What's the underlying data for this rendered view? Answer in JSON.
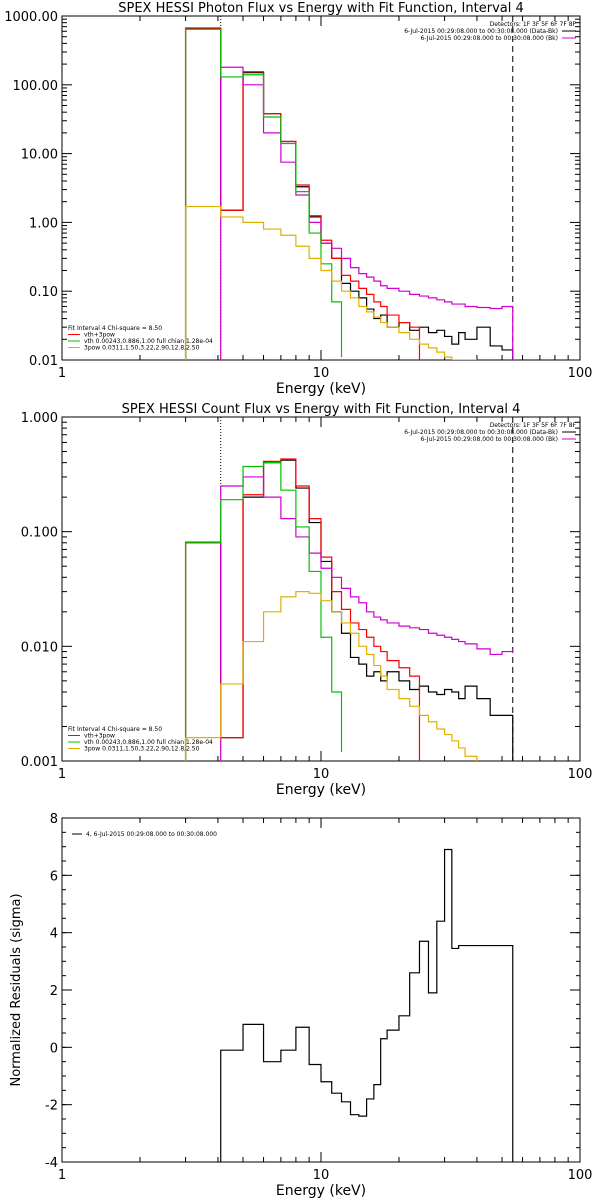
{
  "chart_data": [
    {
      "type": "line",
      "title": "SPEX HESSI Photon Flux vs Energy with Fit Function, Interval 4",
      "xlabel": "Energy (keV)",
      "ylabel": "",
      "x_scale": "log",
      "y_scale": "log",
      "xlim": [
        1,
        100
      ],
      "ylim": [
        0.01,
        1000
      ],
      "x_ticks": [
        {
          "v": 1,
          "label": "1"
        },
        {
          "v": 10,
          "label": "10"
        },
        {
          "v": 100,
          "label": "100"
        }
      ],
      "y_ticks": [
        {
          "v": 0.01,
          "label": "0.01"
        },
        {
          "v": 0.1,
          "label": "0.10"
        },
        {
          "v": 1,
          "label": "1.00"
        },
        {
          "v": 10,
          "label": "10.00"
        },
        {
          "v": 100,
          "label": "100.00"
        },
        {
          "v": 1000,
          "label": "1000.00"
        }
      ],
      "vlines": [
        {
          "x": 4.1,
          "style": "dotted"
        },
        {
          "x": 55,
          "style": "dashed"
        }
      ],
      "legend_top_right": [
        {
          "text": "Detectors: 1F 3F 5F 6F 7F 8F",
          "color": "#000000"
        },
        {
          "text": "6-Jul-2015 00:29:08.000 to 00:30:08.000 (Data-Bk)",
          "color": "#000000"
        },
        {
          "text": "6-Jul-2015 00:29:08.000 to 00:30:08.000 (Bk)",
          "color": "#d000d0"
        }
      ],
      "legend_bottom_left": [
        {
          "text": "Fit Interval 4   Chi-square = 8.50",
          "color": "#000000"
        },
        {
          "text": "vth+3pow",
          "color": "#ff0000"
        },
        {
          "text": "vth 0.00243,0.886,1.00  full chian 1.28e-04",
          "color": "#00c000"
        },
        {
          "text": "3pow 0.0311,1.50,3.22,2.90,12.8,2.50",
          "color": "#e0b000"
        }
      ],
      "series": [
        {
          "color": "#000000",
          "edges": [
            3,
            4.1,
            5,
            6,
            7,
            8,
            9,
            10,
            11,
            12,
            13,
            14,
            15,
            16,
            17,
            18,
            20,
            22,
            24,
            26,
            28,
            30,
            32,
            34,
            36,
            40,
            45,
            50,
            55
          ],
          "values": [
            650,
            1.5,
            150,
            38,
            15,
            3.3,
            1.2,
            0.5,
            0.3,
            0.13,
            0.1,
            0.08,
            0.055,
            0.04,
            0.045,
            0.03,
            0.035,
            0.027,
            0.03,
            0.025,
            0.027,
            0.022,
            0.017,
            0.025,
            0.02,
            0.03,
            0.016,
            0.014
          ]
        },
        {
          "color": "#ff0000",
          "edges": [
            3,
            4.1,
            5,
            6,
            7,
            8,
            9,
            10,
            11,
            12,
            13,
            14,
            15,
            16,
            17,
            18,
            20,
            22,
            24
          ],
          "values": [
            670,
            1.5,
            155,
            38,
            15,
            3.5,
            1.25,
            0.55,
            0.3,
            0.17,
            0.14,
            0.11,
            0.09,
            0.07,
            0.06,
            0.045,
            0.035,
            0.03
          ]
        },
        {
          "color": "#d000d0",
          "edges": [
            4.1,
            5,
            6,
            7,
            8,
            9,
            10,
            11,
            12,
            13,
            14,
            15,
            16,
            17,
            18,
            20,
            22,
            24,
            26,
            28,
            30,
            32,
            34,
            36,
            40,
            45,
            50,
            55
          ],
          "values": [
            180,
            100,
            20,
            7.5,
            2.5,
            1.0,
            0.5,
            0.42,
            0.3,
            0.22,
            0.18,
            0.16,
            0.14,
            0.12,
            0.11,
            0.1,
            0.09,
            0.085,
            0.08,
            0.075,
            0.07,
            0.065,
            0.065,
            0.06,
            0.058,
            0.056,
            0.06
          ]
        },
        {
          "color": "#00c000",
          "edges": [
            3,
            4.1,
            5,
            6,
            7,
            8,
            9,
            10,
            11,
            12
          ],
          "values": [
            640,
            130,
            140,
            34,
            14,
            2.8,
            0.7,
            0.25,
            0.07,
            0.011
          ]
        },
        {
          "color": "#e0b000",
          "edges": [
            3,
            4.1,
            5,
            6,
            7,
            8,
            9,
            10,
            11,
            12,
            13,
            14,
            15,
            16,
            17,
            18,
            20,
            22,
            24,
            26,
            28,
            30,
            32,
            34,
            36,
            40
          ],
          "values": [
            1.7,
            1.2,
            1.0,
            0.8,
            0.65,
            0.45,
            0.3,
            0.2,
            0.14,
            0.1,
            0.08,
            0.06,
            0.05,
            0.042,
            0.035,
            0.03,
            0.025,
            0.02,
            0.017,
            0.015,
            0.013,
            0.011,
            0.01,
            0.009,
            0.008
          ]
        }
      ]
    },
    {
      "type": "line",
      "title": "SPEX HESSI Count Flux vs Energy with Fit Function, Interval 4",
      "xlabel": "Energy (keV)",
      "ylabel": "",
      "x_scale": "log",
      "y_scale": "log",
      "xlim": [
        1,
        100
      ],
      "ylim": [
        0.001,
        1
      ],
      "x_ticks": [
        {
          "v": 1,
          "label": "1"
        },
        {
          "v": 10,
          "label": "10"
        },
        {
          "v": 100,
          "label": "100"
        }
      ],
      "y_ticks": [
        {
          "v": 0.001,
          "label": "0.001"
        },
        {
          "v": 0.01,
          "label": "0.010"
        },
        {
          "v": 0.1,
          "label": "0.100"
        },
        {
          "v": 1,
          "label": "1.000"
        }
      ],
      "vlines": [
        {
          "x": 4.1,
          "style": "dotted"
        },
        {
          "x": 55,
          "style": "dashed"
        }
      ],
      "legend_top_right": [
        {
          "text": "Detectors: 1F 3F 5F 6F 7F 8F",
          "color": "#000000"
        },
        {
          "text": "6-Jul-2015 00:29:08.000 to 00:30:08.000 (Data-Bk)",
          "color": "#000000"
        },
        {
          "text": "6-Jul-2015 00:29:08.000 to 00:30:08.000 (Bk)",
          "color": "#d000d0"
        }
      ],
      "legend_bottom_left": [
        {
          "text": "Fit Interval 4   Chi-square = 8.50",
          "color": "#000000"
        },
        {
          "text": "vth+3pow",
          "color": "#ff0000"
        },
        {
          "text": "vth 0.00243,0.886,1.00  full chian 1.28e-04",
          "color": "#00c000"
        },
        {
          "text": "3pow 0.0311,1.50,3.22,2.90,12.8,2.50",
          "color": "#e0b000"
        }
      ],
      "series": [
        {
          "color": "#000000",
          "edges": [
            3,
            4.1,
            5,
            6,
            7,
            8,
            9,
            10,
            11,
            12,
            13,
            14,
            15,
            16,
            17,
            18,
            20,
            22,
            24,
            26,
            28,
            30,
            32,
            34,
            36,
            40,
            45,
            50,
            55
          ],
          "values": [
            0.08,
            0.0016,
            0.2,
            0.4,
            0.42,
            0.24,
            0.12,
            0.055,
            0.02,
            0.013,
            0.008,
            0.007,
            0.0055,
            0.006,
            0.005,
            0.006,
            0.005,
            0.0042,
            0.0045,
            0.004,
            0.0038,
            0.0042,
            0.004,
            0.0035,
            0.0045,
            0.0035,
            0.0025,
            0.0025
          ]
        },
        {
          "color": "#ff0000",
          "edges": [
            3,
            4.1,
            5,
            6,
            7,
            8,
            9,
            10,
            11,
            12,
            13,
            14,
            15,
            16,
            17,
            18,
            20,
            22,
            24
          ],
          "values": [
            0.081,
            0.0016,
            0.21,
            0.41,
            0.43,
            0.25,
            0.13,
            0.06,
            0.03,
            0.021,
            0.016,
            0.014,
            0.012,
            0.01,
            0.009,
            0.0075,
            0.0065,
            0.0055
          ]
        },
        {
          "color": "#d000d0",
          "edges": [
            4.1,
            5,
            6,
            7,
            8,
            9,
            10,
            11,
            12,
            13,
            14,
            15,
            16,
            17,
            18,
            20,
            22,
            24,
            26,
            28,
            30,
            32,
            34,
            36,
            40,
            45,
            50,
            55
          ],
          "values": [
            0.25,
            0.3,
            0.2,
            0.13,
            0.09,
            0.065,
            0.048,
            0.04,
            0.032,
            0.027,
            0.024,
            0.02,
            0.018,
            0.017,
            0.016,
            0.015,
            0.0145,
            0.014,
            0.013,
            0.0125,
            0.012,
            0.0115,
            0.011,
            0.0105,
            0.0095,
            0.0085,
            0.009,
            0.0095
          ]
        },
        {
          "color": "#00c000",
          "edges": [
            3,
            4.1,
            5,
            6,
            7,
            8,
            9,
            10,
            11,
            12
          ],
          "values": [
            0.08,
            0.19,
            0.37,
            0.4,
            0.23,
            0.11,
            0.045,
            0.012,
            0.004,
            0.0012
          ]
        },
        {
          "color": "#e0b000",
          "edges": [
            3,
            4.1,
            5,
            6,
            7,
            8,
            9,
            10,
            11,
            12,
            13,
            14,
            15,
            16,
            17,
            18,
            20,
            22,
            24,
            26,
            28,
            30,
            32,
            34,
            36,
            40
          ],
          "values": [
            0.0016,
            0.0047,
            0.011,
            0.02,
            0.027,
            0.03,
            0.029,
            0.025,
            0.02,
            0.016,
            0.013,
            0.01,
            0.0085,
            0.0068,
            0.0055,
            0.0042,
            0.0035,
            0.003,
            0.0025,
            0.0022,
            0.0019,
            0.0017,
            0.0015,
            0.0013,
            0.0011
          ]
        }
      ]
    },
    {
      "type": "line",
      "title": "",
      "xlabel": "Energy (keV)",
      "ylabel": "Normalized Residuals (sigma)",
      "x_scale": "log",
      "y_scale": "linear",
      "xlim": [
        1,
        100
      ],
      "ylim": [
        -4,
        8
      ],
      "x_ticks": [
        {
          "v": 1,
          "label": "1"
        },
        {
          "v": 10,
          "label": "10"
        },
        {
          "v": 100,
          "label": "100"
        }
      ],
      "y_ticks": [
        {
          "v": -4,
          "label": "-4"
        },
        {
          "v": -2,
          "label": "-2"
        },
        {
          "v": 0,
          "label": "0"
        },
        {
          "v": 2,
          "label": "2"
        },
        {
          "v": 4,
          "label": "4"
        },
        {
          "v": 6,
          "label": "6"
        },
        {
          "v": 8,
          "label": "8"
        }
      ],
      "legend": [
        {
          "text": "4,  6-Jul-2015 00:29:08.000 to 00:30:08.000",
          "color": "#000000"
        }
      ],
      "series": [
        {
          "color": "#000000",
          "edges": [
            4.1,
            5,
            6,
            7,
            8,
            9,
            10,
            11,
            12,
            13,
            14,
            15,
            16,
            17,
            18,
            20,
            22,
            24,
            26,
            28,
            30,
            32,
            34,
            36,
            40,
            45,
            50,
            55
          ],
          "values": [
            -0.1,
            0.8,
            -0.5,
            -0.1,
            0.7,
            -0.6,
            -1.2,
            -1.6,
            -1.9,
            -2.35,
            -2.4,
            -1.8,
            -1.3,
            0.3,
            0.6,
            1.1,
            2.6,
            3.7,
            1.9,
            4.4,
            6.9,
            3.45,
            3.55,
            3.55,
            3.55,
            3.55,
            3.55
          ],
          "start_from": -4.1,
          "end_to": -4.1
        }
      ]
    }
  ]
}
